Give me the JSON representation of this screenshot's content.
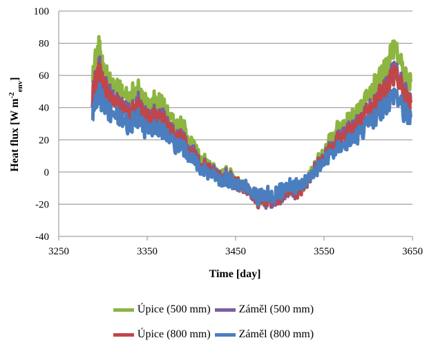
{
  "chart_data": {
    "type": "line",
    "title": "",
    "xlabel": "Time [day]",
    "ylabel_main": "Heat flux [W m",
    "ylabel_sup": "-2",
    "ylabel_sub": "env",
    "ylabel_end": "]",
    "xlim": [
      3250,
      3650
    ],
    "ylim": [
      -40,
      100
    ],
    "xticks": [
      "3250",
      "3350",
      "3450",
      "3550",
      "3650"
    ],
    "yticks": [
      "-40",
      "-20",
      "0",
      "20",
      "40",
      "60",
      "80",
      "100"
    ],
    "grid": "horizontal",
    "legend_position": "bottom",
    "x": [
      3288,
      3295,
      3300,
      3310,
      3320,
      3330,
      3340,
      3350,
      3360,
      3370,
      3380,
      3390,
      3400,
      3410,
      3420,
      3430,
      3440,
      3450,
      3460,
      3470,
      3480,
      3490,
      3500,
      3510,
      3520,
      3530,
      3540,
      3550,
      3560,
      3570,
      3580,
      3590,
      3600,
      3610,
      3620,
      3630,
      3640,
      3648
    ],
    "series": [
      {
        "name": "Úpice (500 mm)",
        "color": "#8db541",
        "values": [
          58,
          80,
          62,
          55,
          50,
          46,
          50,
          42,
          45,
          40,
          30,
          28,
          18,
          8,
          5,
          0,
          0,
          -6,
          -10,
          -14,
          -18,
          -16,
          -14,
          -10,
          -12,
          -5,
          5,
          12,
          22,
          30,
          33,
          38,
          45,
          55,
          65,
          80,
          60,
          56
        ]
      },
      {
        "name": "Záměl (500 mm)",
        "color": "#7b5fa0",
        "values": [
          48,
          67,
          55,
          46,
          42,
          38,
          42,
          34,
          37,
          33,
          24,
          22,
          14,
          5,
          3,
          -2,
          -2,
          -7,
          -11,
          -15,
          -19,
          -17,
          -15,
          -11,
          -13,
          -6,
          3,
          9,
          17,
          24,
          27,
          31,
          37,
          45,
          53,
          67,
          50,
          44
        ]
      },
      {
        "name": "Úpice (800 mm)",
        "color": "#c0464a",
        "values": [
          45,
          64,
          53,
          44,
          40,
          36,
          40,
          32,
          35,
          31,
          22,
          20,
          12,
          4,
          2,
          -3,
          -3,
          -8,
          -11,
          -15,
          -18,
          -16,
          -14,
          -10,
          -12,
          -6,
          2,
          8,
          16,
          22,
          25,
          30,
          36,
          44,
          52,
          64,
          48,
          43
        ]
      },
      {
        "name": "Záměl (800 mm)",
        "color": "#4a7ebf",
        "values": [
          36,
          50,
          42,
          36,
          33,
          30,
          33,
          26,
          28,
          25,
          18,
          16,
          9,
          2,
          0,
          -4,
          -4,
          -8,
          -10,
          -14,
          -16,
          -14,
          -12,
          -8,
          -10,
          -5,
          1,
          6,
          12,
          17,
          20,
          24,
          29,
          35,
          42,
          50,
          38,
          34
        ]
      }
    ]
  }
}
